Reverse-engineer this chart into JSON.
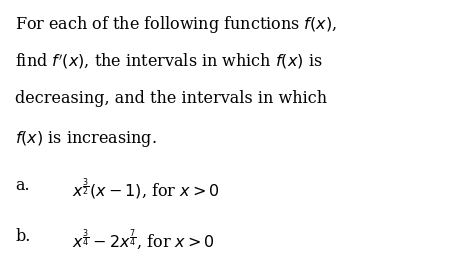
{
  "background_color": "#ffffff",
  "figsize": [
    4.73,
    2.58
  ],
  "dpi": 100,
  "para_line1": "For each of the following functions $f(x)$,",
  "para_line2": "find $f'(x)$, the intervals in which $f(x)$ is",
  "para_line3": "decreasing, and the intervals in which",
  "para_line4": "$f(x)$ is increasing.",
  "item_a_label": "a.",
  "item_a_expr": "$x^{\\frac{3}{2}}(x - 1)$, for $x > 0$",
  "item_b_label": "b.",
  "item_b_expr": "$x^{\\frac{3}{4}} - 2x^{\\frac{7}{4}}$, for $x > 0$",
  "font_size_para": 11.5,
  "font_size_items": 11.5,
  "text_color": "#000000",
  "font_family": "DejaVu Serif"
}
